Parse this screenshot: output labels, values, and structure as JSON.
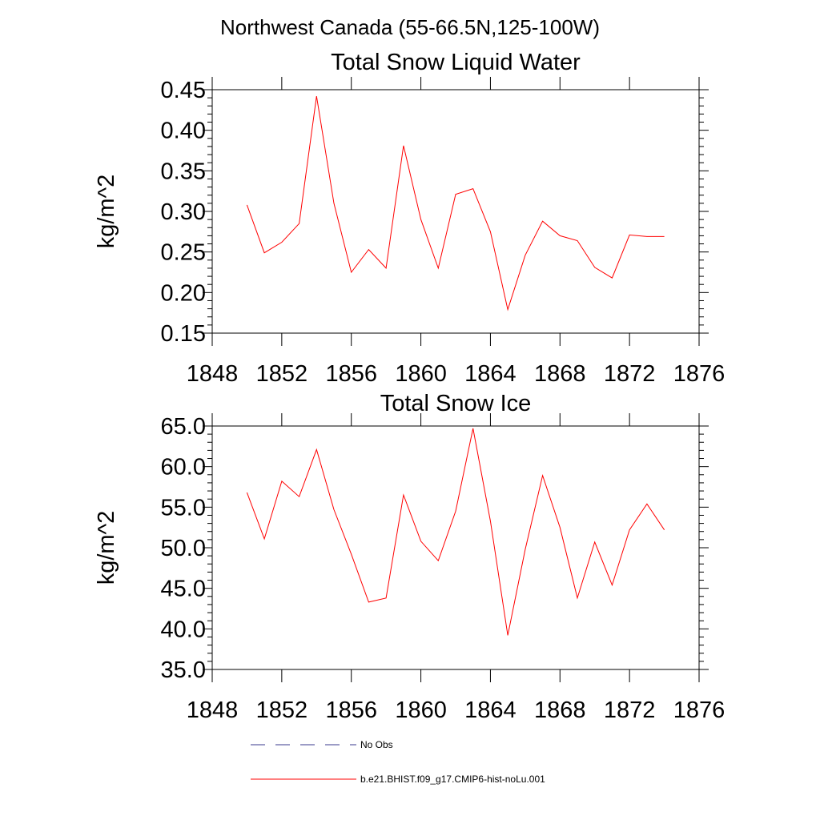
{
  "figure_title": "Northwest Canada (55-66.5N,125-100W)",
  "legend": {
    "obs_label": "No Obs",
    "model_label": "b.e21.BHIST.f09_g17.CMIP6-hist-noLu.001",
    "obs_color": "#3a3a8c",
    "model_color": "#ff0000"
  },
  "chart_data": [
    {
      "type": "line",
      "title": "Total Snow Liquid Water",
      "xlabel": "",
      "ylabel": "kg/m^2",
      "xlim": [
        1848,
        1876
      ],
      "ylim": [
        0.15,
        0.45
      ],
      "xticks": [
        1848,
        1852,
        1856,
        1860,
        1864,
        1868,
        1872,
        1876
      ],
      "yticks": [
        0.15,
        0.2,
        0.25,
        0.3,
        0.35,
        0.4,
        0.45
      ],
      "ytick_labels": [
        "0.15",
        "0.20",
        "0.25",
        "0.30",
        "0.35",
        "0.40",
        "0.45"
      ],
      "grid": false,
      "series": [
        {
          "name": "b.e21.BHIST.f09_g17.CMIP6-hist-noLu.001",
          "color": "#ff0000",
          "x": [
            1850,
            1851,
            1852,
            1853,
            1854,
            1855,
            1856,
            1857,
            1858,
            1859,
            1860,
            1861,
            1862,
            1863,
            1864,
            1865,
            1866,
            1867,
            1868,
            1869,
            1870,
            1871,
            1872,
            1873,
            1874
          ],
          "y": [
            0.308,
            0.249,
            0.262,
            0.285,
            0.442,
            0.31,
            0.225,
            0.253,
            0.23,
            0.381,
            0.29,
            0.23,
            0.321,
            0.328,
            0.275,
            0.179,
            0.246,
            0.288,
            0.27,
            0.264,
            0.231,
            0.218,
            0.271,
            0.269,
            0.269
          ]
        }
      ]
    },
    {
      "type": "line",
      "title": "Total Snow Ice",
      "xlabel": "",
      "ylabel": "kg/m^2",
      "xlim": [
        1848,
        1876
      ],
      "ylim": [
        35,
        65
      ],
      "xticks": [
        1848,
        1852,
        1856,
        1860,
        1864,
        1868,
        1872,
        1876
      ],
      "yticks": [
        35,
        40,
        45,
        50,
        55,
        60,
        65
      ],
      "ytick_labels": [
        "35.0",
        "40.0",
        "45.0",
        "50.0",
        "55.0",
        "60.0",
        "65.0"
      ],
      "grid": false,
      "series": [
        {
          "name": "b.e21.BHIST.f09_g17.CMIP6-hist-noLu.001",
          "color": "#ff0000",
          "x": [
            1850,
            1851,
            1852,
            1853,
            1854,
            1855,
            1856,
            1857,
            1858,
            1859,
            1860,
            1861,
            1862,
            1863,
            1864,
            1865,
            1866,
            1867,
            1868,
            1869,
            1870,
            1871,
            1872,
            1873,
            1874
          ],
          "y": [
            56.8,
            51.1,
            58.2,
            56.3,
            62.1,
            54.7,
            49.2,
            43.3,
            43.8,
            56.5,
            50.8,
            48.4,
            54.5,
            64.7,
            53.3,
            39.2,
            49.8,
            58.9,
            52.5,
            43.8,
            50.7,
            45.4,
            52.2,
            55.4,
            52.2
          ]
        }
      ]
    }
  ]
}
